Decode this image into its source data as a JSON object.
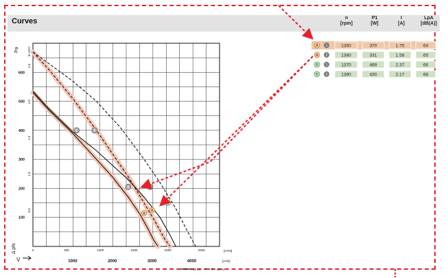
{
  "title": "Curves",
  "table": {
    "headers": [
      {
        "name": "n",
        "unit": "[rpm]"
      },
      {
        "name": "P1",
        "unit": "[W]"
      },
      {
        "name": "I",
        "unit": "[A]"
      },
      {
        "name": "LpA",
        "unit": "[dB(A)]"
      }
    ],
    "rows": [
      {
        "letter": "A",
        "num": "1",
        "n": "1350",
        "p": "370",
        "i": "1.75",
        "lpa": "64",
        "highlight": true
      },
      {
        "letter": "A",
        "num": "2",
        "n": "1380",
        "p": "331",
        "i": "1.58",
        "lpa": "65",
        "highlight": false
      },
      {
        "letter": "B",
        "num": "1",
        "n": "1370",
        "p": "469",
        "i": "2.37",
        "lpa": "66",
        "highlight": false
      },
      {
        "letter": "B",
        "num": "2",
        "n": "1390",
        "p": "430",
        "i": "2.17",
        "lpa": "68",
        "highlight": false
      }
    ]
  },
  "colors": {
    "accent_red": "#e8202a",
    "highlight_row": "#f0c8a8",
    "cell_green": "#cfe0c4",
    "band": "#f5c6b4",
    "header_bg": "#e3e3e3"
  },
  "chart_data": {
    "type": "line",
    "axes": {
      "y_pa_ticks": [
        "100",
        "200",
        "300",
        "400",
        "500",
        "600"
      ],
      "y_pa_label": "Δ pfs",
      "y_pa_unit": "Pa",
      "y_inh2o_ticks": [
        "0,5",
        "1,0",
        "1,5",
        "2,0",
        "2,5"
      ],
      "y_inh2o_unit": "in H2O",
      "x_cfm_ticks": [
        "0",
        "500",
        "1000",
        "1500",
        "2000",
        "2500"
      ],
      "x_cfm_unit": "[CFM]",
      "x_m3h_ticks": [
        "1000",
        "2000",
        "3000",
        "4000"
      ],
      "x_m3h_unit": "[m³/h]",
      "x_symbol": "V̇",
      "xlim_m3h": [
        0,
        4700
      ],
      "ylim_pa": [
        0,
        700
      ]
    },
    "legend": [
      {
        "label": "50 Hz",
        "style": "solid"
      },
      {
        "label": "60 Hz",
        "style": "dashed"
      }
    ],
    "series": [
      {
        "style": "solid",
        "band": true,
        "x": [
          0,
          400,
          1000,
          1600,
          2000,
          2400,
          2700,
          2900,
          3050,
          3150
        ],
        "y": [
          530,
          470,
          390,
          300,
          240,
          170,
          110,
          60,
          20,
          0
        ]
      },
      {
        "style": "dashed",
        "band": true,
        "x": [
          0,
          400,
          1000,
          1600,
          2000,
          2400,
          2800,
          3100,
          3300,
          3450
        ],
        "y": [
          670,
          610,
          510,
          400,
          320,
          240,
          150,
          80,
          30,
          0
        ]
      },
      {
        "style": "solid",
        "band": false,
        "x": [
          0,
          400,
          1000,
          1600,
          2000,
          2400,
          2800,
          3200,
          3450,
          3600
        ],
        "y": [
          535,
          475,
          395,
          330,
          280,
          230,
          170,
          100,
          40,
          0
        ]
      },
      {
        "style": "dashed",
        "band": false,
        "x": [
          0,
          500,
          1000,
          1600,
          2200,
          2800,
          3200,
          3600,
          3900,
          4100
        ],
        "y": [
          670,
          620,
          570,
          500,
          410,
          300,
          220,
          130,
          50,
          0
        ]
      }
    ],
    "op_points": [
      {
        "label": "1",
        "x": 1100,
        "y": 400,
        "kind": "gray"
      },
      {
        "label": "1",
        "x": 1550,
        "y": 400,
        "kind": "gray"
      },
      {
        "label": "2",
        "x": 2400,
        "y": 205,
        "kind": "gray"
      },
      {
        "label": "1",
        "x": 2950,
        "y": 205,
        "kind": "gray"
      },
      {
        "label": "A",
        "x": 2800,
        "y": 115,
        "kind": "orange"
      },
      {
        "label": "A",
        "x": 3000,
        "y": 125,
        "kind": "orange"
      },
      {
        "label": "B",
        "x": 3400,
        "y": 150,
        "kind": "green"
      }
    ]
  }
}
